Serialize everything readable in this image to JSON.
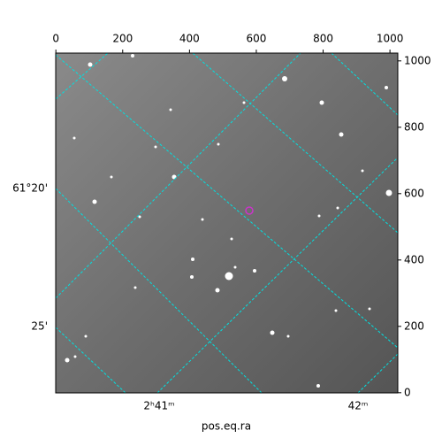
{
  "chart_data": {
    "type": "image",
    "xlim": [
      -0.5,
      1023.5
    ],
    "xticks": [
      0,
      200,
      400,
      600,
      800,
      1000
    ],
    "ylim": [
      -0.5,
      1023.5
    ],
    "yticks": [
      0,
      200,
      400,
      600,
      800,
      1000
    ],
    "dec_tick_labels": [
      "61°20'",
      "25'"
    ],
    "ra_tick_labels": [
      "2ʰ41ᵐ",
      "42ᵐ"
    ],
    "xlabel": "pos.eq.ra",
    "marker": {
      "x": 579,
      "y": 549,
      "color": "#cc33cc"
    }
  }
}
